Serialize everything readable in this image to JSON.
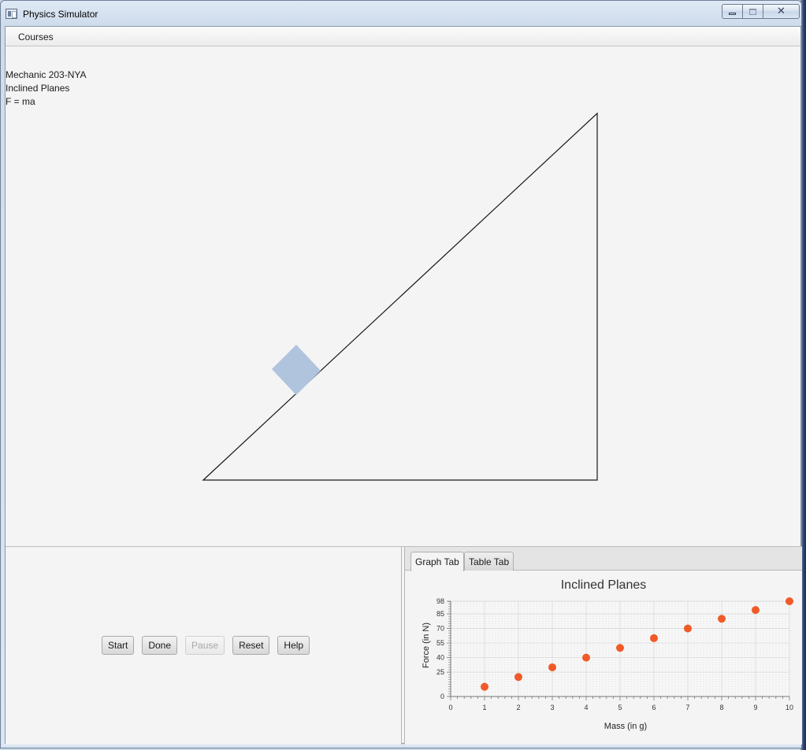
{
  "window": {
    "title": "Physics Simulator"
  },
  "menu": {
    "courses": "Courses"
  },
  "info": {
    "course": "Mechanic 203-NYA",
    "topic": "Inclined Planes",
    "formula": "F = ma"
  },
  "controls": {
    "start": "Start",
    "done": "Done",
    "pause": "Pause",
    "reset": "Reset",
    "help": "Help"
  },
  "tabs": {
    "graph": "Graph Tab",
    "table": "Table Tab"
  },
  "colors": {
    "block": "#b0c4de",
    "point": "#f05a28"
  },
  "chart_data": {
    "type": "scatter",
    "title": "Inclined Planes",
    "xlabel": "Mass (in g)",
    "ylabel": "Force (in N)",
    "xlim": [
      0,
      10
    ],
    "ylim": [
      0,
      98
    ],
    "xticks": [
      0,
      1,
      2,
      3,
      4,
      5,
      6,
      7,
      8,
      9,
      10
    ],
    "yticks": [
      0,
      25,
      40,
      55,
      70,
      85,
      98
    ],
    "grid": true,
    "series": [
      {
        "x": [
          1,
          2,
          3,
          4,
          5,
          6,
          7,
          8,
          9,
          10
        ],
        "y": [
          10,
          20,
          30,
          40,
          50,
          60,
          70,
          80,
          89,
          98
        ]
      }
    ]
  }
}
